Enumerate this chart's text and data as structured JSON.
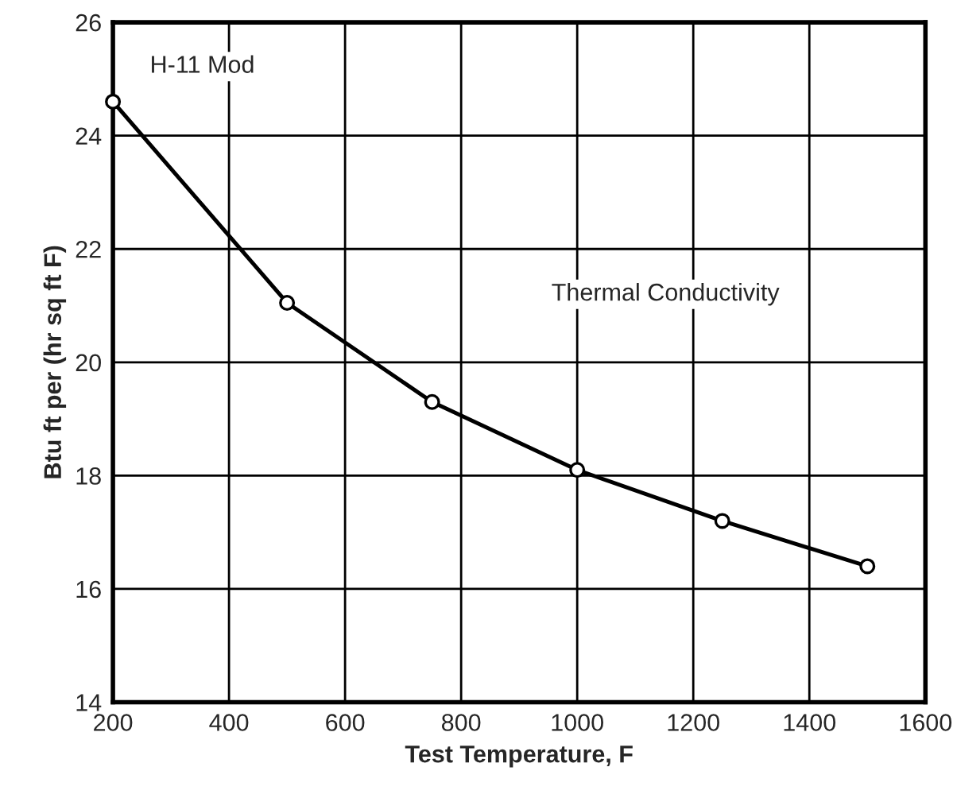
{
  "chart_data": {
    "type": "line",
    "xlabel": "Test Temperature, F",
    "ylabel": "Btu ft per (hr sq ft F)",
    "x": [
      200,
      500,
      750,
      1000,
      1250,
      1500
    ],
    "series": [
      {
        "color": "#000000",
        "values": [
          24.6,
          21.05,
          19.3,
          18.1,
          17.2,
          16.4
        ]
      }
    ],
    "xlim": [
      200,
      1600
    ],
    "xticks": [
      200,
      400,
      600,
      800,
      1000,
      1200,
      1400,
      1600
    ],
    "ylim": [
      14,
      26
    ],
    "yticks": [
      14,
      16,
      18,
      20,
      22,
      24,
      26
    ],
    "grid": true,
    "marker": "circle",
    "line_style": "solid",
    "annotations": [
      "H-11 Mod",
      "Thermal Conductivity"
    ]
  }
}
